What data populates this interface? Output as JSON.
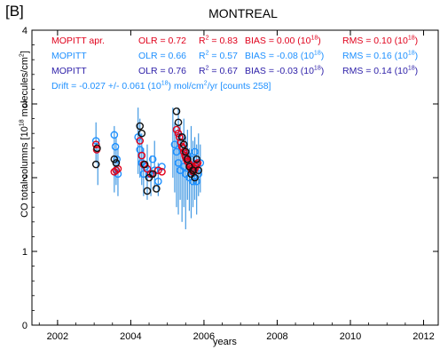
{
  "panel_label": "[B]",
  "chart_data": {
    "type": "scatter",
    "title": "MONTREAL",
    "xlabel": "years",
    "ylabel": "CO total columns [10^18 molecules/cm^2]",
    "xlim": [
      2001.3,
      2012.4
    ],
    "ylim": [
      0,
      4
    ],
    "xticks": [
      "2002",
      "2004",
      "2006",
      "2008",
      "2010",
      "2012"
    ],
    "yticks": [
      "0",
      "1",
      "2",
      "3",
      "4"
    ],
    "stats": [
      {
        "label": "MOPITT apr.",
        "olr": "OLR = 0.72",
        "r2_prefix": "R",
        "r2_value": " = 0.83",
        "bias_prefix": "BIAS = 0.00 (10",
        "bias_suffix": ")",
        "rms_prefix": "RMS = 0.10 (10",
        "rms_suffix": ")",
        "color": "#e0001b"
      },
      {
        "label": "MOPITT",
        "olr": "OLR = 0.66",
        "r2_prefix": "R",
        "r2_value": " = 0.57",
        "bias_prefix": "BIAS = -0.08 (10",
        "bias_suffix": ")",
        "rms_prefix": "RMS = 0.16 (10",
        "rms_suffix": ")",
        "color": "#1e90ff"
      },
      {
        "label": "MOPITT",
        "olr": "OLR = 0.76",
        "r2_prefix": "R",
        "r2_value": " = 0.67",
        "bias_prefix": "BIAS = -0.03 (10",
        "bias_suffix": ")",
        "rms_prefix": "RMS = 0.14 (10",
        "rms_suffix": ")",
        "color": "#2c1ea8"
      }
    ],
    "drift": {
      "prefix": "Drift =  -0.027 +/-  0.061 (10",
      "middle": ") mol/cm",
      "suffix": "/yr  [counts  258]"
    },
    "series": [
      {
        "name": "MOPITT apr.",
        "color": "#e0001b",
        "points": [
          [
            2003.05,
            2.45
          ],
          [
            2003.07,
            2.38
          ],
          [
            2003.55,
            2.08
          ],
          [
            2003.6,
            2.1
          ],
          [
            2003.65,
            2.12
          ],
          [
            2004.25,
            2.5
          ],
          [
            2004.3,
            2.3
          ],
          [
            2004.35,
            2.18
          ],
          [
            2004.45,
            2.12
          ],
          [
            2004.55,
            2.05
          ],
          [
            2004.75,
            2.1
          ],
          [
            2004.85,
            2.08
          ],
          [
            2005.25,
            2.65
          ],
          [
            2005.3,
            2.6
          ],
          [
            2005.33,
            2.55
          ],
          [
            2005.37,
            2.48
          ],
          [
            2005.4,
            2.42
          ],
          [
            2005.43,
            2.4
          ],
          [
            2005.45,
            2.35
          ],
          [
            2005.48,
            2.3
          ],
          [
            2005.5,
            2.28
          ],
          [
            2005.52,
            2.25
          ],
          [
            2005.55,
            2.22
          ],
          [
            2005.58,
            2.2
          ],
          [
            2005.6,
            2.18
          ],
          [
            2005.62,
            2.15
          ],
          [
            2005.65,
            2.12
          ],
          [
            2005.68,
            2.1
          ],
          [
            2005.7,
            2.08
          ],
          [
            2005.73,
            2.1
          ],
          [
            2005.75,
            2.12
          ],
          [
            2005.78,
            2.15
          ],
          [
            2005.8,
            2.18
          ],
          [
            2005.83,
            2.2
          ]
        ]
      },
      {
        "name": "MOPITT",
        "color": "#1e90ff",
        "points": [
          [
            2003.05,
            2.5
          ],
          [
            2003.55,
            2.58
          ],
          [
            2003.58,
            2.42
          ],
          [
            2003.62,
            2.25
          ],
          [
            2003.65,
            2.05
          ],
          [
            2004.2,
            2.55
          ],
          [
            2004.25,
            2.38
          ],
          [
            2004.3,
            2.2
          ],
          [
            2004.35,
            2.05
          ],
          [
            2004.4,
            2.15
          ],
          [
            2004.5,
            2.05
          ],
          [
            2004.6,
            2.25
          ],
          [
            2004.65,
            2.1
          ],
          [
            2004.75,
            1.95
          ],
          [
            2004.85,
            2.15
          ],
          [
            2005.2,
            2.45
          ],
          [
            2005.25,
            2.35
          ],
          [
            2005.3,
            2.2
          ],
          [
            2005.35,
            2.1
          ],
          [
            2005.4,
            2.55
          ],
          [
            2005.45,
            2.15
          ],
          [
            2005.5,
            2.05
          ],
          [
            2005.55,
            2.3
          ],
          [
            2005.6,
            2.0
          ],
          [
            2005.65,
            2.25
          ],
          [
            2005.7,
            1.95
          ],
          [
            2005.75,
            2.35
          ],
          [
            2005.8,
            1.95
          ],
          [
            2005.85,
            2.05
          ],
          [
            2005.9,
            2.2
          ]
        ]
      },
      {
        "name": "MOPITT",
        "color": "#111111",
        "points": [
          [
            2003.05,
            2.18
          ],
          [
            2003.08,
            2.4
          ],
          [
            2003.55,
            2.25
          ],
          [
            2003.6,
            2.2
          ],
          [
            2004.25,
            2.7
          ],
          [
            2004.3,
            2.6
          ],
          [
            2004.38,
            2.18
          ],
          [
            2004.45,
            1.82
          ],
          [
            2004.5,
            2.0
          ],
          [
            2004.6,
            2.05
          ],
          [
            2004.7,
            1.85
          ],
          [
            2005.25,
            2.9
          ],
          [
            2005.3,
            2.75
          ],
          [
            2005.4,
            2.55
          ],
          [
            2005.45,
            2.45
          ],
          [
            2005.5,
            2.35
          ],
          [
            2005.55,
            2.25
          ],
          [
            2005.6,
            2.15
          ],
          [
            2005.65,
            2.05
          ],
          [
            2005.7,
            2.1
          ],
          [
            2005.75,
            2.0
          ],
          [
            2005.8,
            2.25
          ],
          [
            2005.85,
            2.1
          ]
        ]
      }
    ],
    "error_bars": [
      [
        2003.05,
        2.2,
        2.75
      ],
      [
        2003.1,
        1.9,
        2.4
      ],
      [
        2003.55,
        1.8,
        2.7
      ],
      [
        2003.6,
        1.9,
        2.55
      ],
      [
        2003.65,
        1.75,
        2.4
      ],
      [
        2004.2,
        2.05,
        2.95
      ],
      [
        2004.25,
        2.0,
        2.8
      ],
      [
        2004.3,
        1.9,
        2.6
      ],
      [
        2004.35,
        1.75,
        2.4
      ],
      [
        2004.45,
        1.7,
        2.45
      ],
      [
        2004.55,
        1.75,
        2.3
      ],
      [
        2004.65,
        1.85,
        2.5
      ],
      [
        2004.75,
        1.75,
        2.2
      ],
      [
        2005.15,
        2.0,
        2.95
      ],
      [
        2005.2,
        1.8,
        2.75
      ],
      [
        2005.25,
        1.6,
        2.6
      ],
      [
        2005.3,
        1.5,
        2.95
      ],
      [
        2005.35,
        1.7,
        2.7
      ],
      [
        2005.4,
        1.4,
        2.5
      ],
      [
        2005.45,
        1.6,
        2.8
      ],
      [
        2005.5,
        1.3,
        2.55
      ],
      [
        2005.55,
        1.7,
        2.65
      ],
      [
        2005.6,
        1.55,
        2.4
      ],
      [
        2005.65,
        1.45,
        2.7
      ],
      [
        2005.7,
        1.6,
        2.5
      ],
      [
        2005.75,
        1.7,
        2.55
      ],
      [
        2005.8,
        1.5,
        2.45
      ],
      [
        2005.85,
        1.75,
        2.6
      ],
      [
        2005.9,
        1.8,
        2.45
      ]
    ]
  }
}
